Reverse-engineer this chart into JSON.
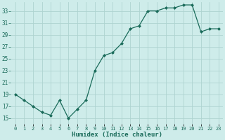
{
  "x": [
    0,
    1,
    2,
    3,
    4,
    5,
    6,
    7,
    8,
    9,
    10,
    11,
    12,
    13,
    14,
    15,
    16,
    17,
    18,
    19,
    20,
    21,
    22,
    23
  ],
  "y": [
    19,
    18,
    17,
    16,
    15.5,
    18,
    15,
    16.5,
    18,
    23,
    25.5,
    26,
    27.5,
    30,
    30.5,
    33,
    33,
    33.5,
    33.5,
    34,
    34,
    29.5,
    30,
    30
  ],
  "line_color": "#1a6b5a",
  "marker": "D",
  "marker_size": 2.0,
  "bg_color": "#ceecea",
  "grid_color": "#aed4d0",
  "xlabel": "Humidex (Indice chaleur)",
  "xlim": [
    -0.5,
    23.5
  ],
  "ylim": [
    14,
    34.5
  ],
  "yticks": [
    15,
    17,
    19,
    21,
    23,
    25,
    27,
    29,
    31,
    33
  ],
  "xtick_labels": [
    "0",
    "1",
    "2",
    "3",
    "4",
    "5",
    "6",
    "7",
    "8",
    "9",
    "10",
    "11",
    "12",
    "13",
    "14",
    "15",
    "16",
    "17",
    "18",
    "19",
    "20",
    "21",
    "22",
    "23"
  ],
  "xlabel_fontsize": 6.5,
  "ytick_fontsize": 5.5,
  "xtick_fontsize": 5.0
}
